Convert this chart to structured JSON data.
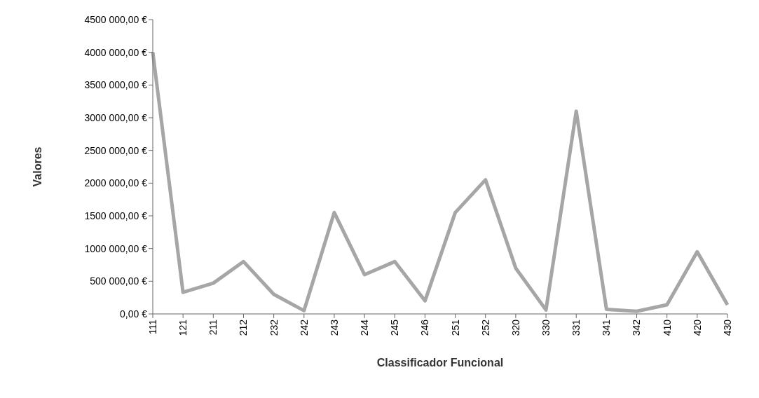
{
  "chart_data": {
    "type": "line",
    "xlabel": "Classificador Funcional",
    "ylabel": "Valores",
    "categories": [
      "111",
      "121",
      "211",
      "212",
      "232",
      "242",
      "243",
      "244",
      "245",
      "246",
      "251",
      "252",
      "320",
      "330",
      "331",
      "341",
      "342",
      "410",
      "420",
      "430"
    ],
    "series": [
      {
        "color": "#a6a6a6",
        "values": [
          4000000,
          330000,
          470000,
          800000,
          300000,
          50000,
          1550000,
          600000,
          800000,
          200000,
          1550000,
          2050000,
          700000,
          60000,
          3100000,
          70000,
          40000,
          140000,
          950000,
          140000
        ]
      }
    ],
    "ylim": [
      0,
      4500000
    ],
    "yticks": [
      {
        "value": 0,
        "label": "0,00 €"
      },
      {
        "value": 500000,
        "label": "500 000,00 €"
      },
      {
        "value": 1000000,
        "label": "1000 000,00 €"
      },
      {
        "value": 1500000,
        "label": "1500 000,00 €"
      },
      {
        "value": 2000000,
        "label": "2000 000,00 €"
      },
      {
        "value": 2500000,
        "label": "2500 000,00 €"
      },
      {
        "value": 3000000,
        "label": "3000 000,00 €"
      },
      {
        "value": 3500000,
        "label": "3500 000,00 €"
      },
      {
        "value": 4000000,
        "label": "4000 000,00 €"
      },
      {
        "value": 4500000,
        "label": "4500 000,00 €"
      }
    ],
    "grid": false,
    "marker": "none",
    "line_style": "solid",
    "legend": false
  }
}
